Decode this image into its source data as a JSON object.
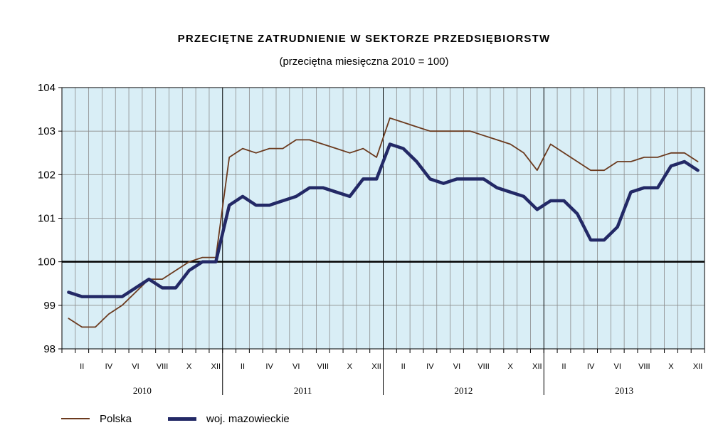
{
  "chart_data": {
    "type": "line",
    "title": "PRZECIĘTNE ZATRUDNIENIE W SEKTORZE PRZEDSIĘBIORSTW",
    "subtitle": "(przeciętna miesięczna 2010 = 100)",
    "xlabel": "",
    "ylabel": "",
    "ylim": [
      98,
      104
    ],
    "yticks": [
      "98",
      "99",
      "100",
      "101",
      "102",
      "103",
      "104"
    ],
    "grid": true,
    "reference_line": 100,
    "years": [
      "2010",
      "2011",
      "2012",
      "2013"
    ],
    "month_tick_labels": [
      "II",
      "IV",
      "VI",
      "VIII",
      "X",
      "XII"
    ],
    "legend_position": "bottom-left",
    "series": [
      {
        "name": "Polska",
        "color": "#6b3a1e",
        "values": [
          98.7,
          98.5,
          98.5,
          98.8,
          99.0,
          99.3,
          99.6,
          99.6,
          99.8,
          100.0,
          100.1,
          100.1,
          102.4,
          102.6,
          102.5,
          102.6,
          102.6,
          102.8,
          102.8,
          102.7,
          102.6,
          102.5,
          102.6,
          102.4,
          103.3,
          103.2,
          103.1,
          103.0,
          103.0,
          103.0,
          103.0,
          102.9,
          102.8,
          102.7,
          102.5,
          102.1,
          102.7,
          102.5,
          102.3,
          102.1,
          102.1,
          102.3,
          102.3,
          102.4,
          102.4,
          102.5,
          102.5,
          102.3
        ]
      },
      {
        "name": "woj. mazowieckie",
        "color": "#232966",
        "values": [
          99.3,
          99.2,
          99.2,
          99.2,
          99.2,
          99.4,
          99.6,
          99.4,
          99.4,
          99.8,
          100.0,
          100.0,
          101.3,
          101.5,
          101.3,
          101.3,
          101.4,
          101.5,
          101.7,
          101.7,
          101.6,
          101.5,
          101.9,
          101.9,
          102.7,
          102.6,
          102.3,
          101.9,
          101.8,
          101.9,
          101.9,
          101.9,
          101.7,
          101.6,
          101.5,
          101.2,
          101.4,
          101.4,
          101.1,
          100.5,
          100.5,
          100.8,
          101.6,
          101.7,
          101.7,
          102.2,
          102.3,
          102.1
        ]
      }
    ]
  }
}
